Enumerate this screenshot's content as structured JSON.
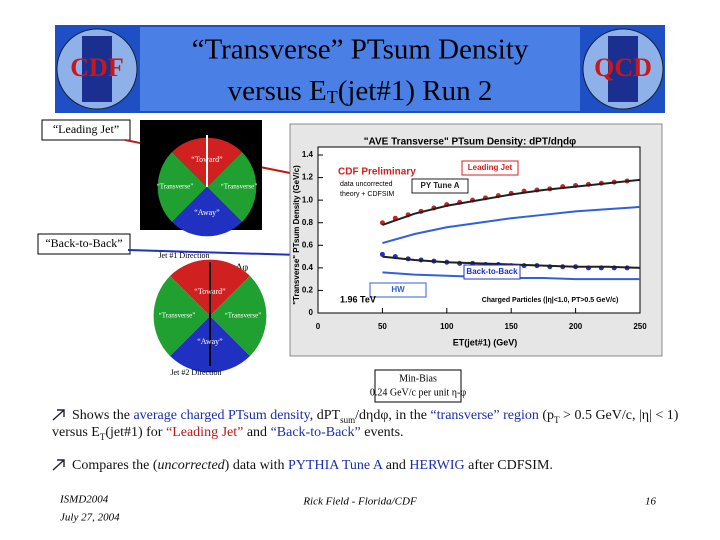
{
  "header": {
    "line1": "“Transverse” PTsum Density",
    "line2_a": "versus E",
    "line2_sub": "T",
    "line2_b": "(jet#1) Run 2",
    "logo_left": "CDF",
    "logo_right": "QCD"
  },
  "side_labels": {
    "leading_jet": "“Leading Jet”",
    "back_to_back": "“Back-to-Back”"
  },
  "diagram1": {
    "toward": "“Toward”",
    "transverse_left": "“Transverse”",
    "transverse_right": "“Transverse”",
    "away": "“Away”"
  },
  "diagram2": {
    "jet1": "Jet #1 Direction",
    "dphi": "Δφ",
    "toward": "“Toward”",
    "transverse_left": "“Transverse”",
    "transverse_right": "“Transverse”",
    "away": "“Away”",
    "jet2": "Jet #2 Direction"
  },
  "chart_data": {
    "type": "line",
    "title": "\"AVE Transverse\" PTsum Density: dPT/dηdφ",
    "y_label": "\"Transverse\" PTsum Density (GeV/c)",
    "x_label": "ET(jet#1) (GeV)",
    "xlim": [
      0,
      250
    ],
    "xticks": [
      0,
      50,
      100,
      150,
      200,
      250
    ],
    "ylim": [
      0,
      1.4
    ],
    "yticks": [
      0,
      0.2,
      0.4,
      0.6,
      0.8,
      {
        "value": 1,
        "label": "1.0"
      },
      1.2,
      1.4
    ],
    "annotations": {
      "preliminary": "CDF Preliminary",
      "uncorrected": "data uncorrected",
      "theory": "theory + CDFSIM",
      "energy": "1.96 TeV",
      "cuts": "Charged Particles (|η|<1.0, PT>0.5 GeV/c)"
    },
    "series": [
      {
        "name": "Leading Jet",
        "color": "#d42020",
        "style": "points",
        "x": [
          50,
          60,
          70,
          80,
          90,
          100,
          110,
          120,
          130,
          140,
          150,
          160,
          170,
          180,
          190,
          200,
          210,
          220,
          230,
          240
        ],
        "values": [
          0.8,
          0.84,
          0.87,
          0.9,
          0.93,
          0.96,
          0.98,
          1.0,
          1.02,
          1.04,
          1.06,
          1.08,
          1.09,
          1.1,
          1.12,
          1.13,
          1.14,
          1.15,
          1.16,
          1.17
        ]
      },
      {
        "name": "Back-to-Back",
        "color": "#2030c0",
        "style": "points",
        "x": [
          50,
          60,
          70,
          80,
          90,
          100,
          110,
          120,
          130,
          140,
          150,
          160,
          170,
          180,
          190,
          200,
          210,
          220,
          230,
          240
        ],
        "values": [
          0.52,
          0.5,
          0.48,
          0.47,
          0.46,
          0.45,
          0.44,
          0.44,
          0.43,
          0.43,
          0.42,
          0.42,
          0.42,
          0.41,
          0.41,
          0.41,
          0.4,
          0.4,
          0.4,
          0.4
        ]
      },
      {
        "name": "PY Tune A",
        "color": "#202020",
        "style": "line",
        "x": [
          50,
          75,
          100,
          125,
          150,
          175,
          200,
          225,
          250
        ],
        "values": [
          0.78,
          0.88,
          0.95,
          1.0,
          1.05,
          1.09,
          1.12,
          1.15,
          1.18
        ]
      },
      {
        "color": "#202020",
        "style": "line",
        "x": [
          50,
          75,
          100,
          125,
          150,
          175,
          200,
          225,
          250
        ],
        "values": [
          0.5,
          0.47,
          0.45,
          0.44,
          0.43,
          0.42,
          0.41,
          0.41,
          0.4
        ]
      },
      {
        "color": "#3060e0",
        "style": "line",
        "x": [
          50,
          75,
          100,
          125,
          150,
          175,
          200,
          225,
          250
        ],
        "values": [
          0.62,
          0.7,
          0.76,
          0.8,
          0.84,
          0.87,
          0.9,
          0.92,
          0.94
        ]
      },
      {
        "name": "HW",
        "color": "#3060e0",
        "style": "line",
        "x": [
          50,
          75,
          100,
          125,
          150,
          175,
          200,
          225,
          250
        ],
        "values": [
          0.36,
          0.34,
          0.33,
          0.32,
          0.31,
          0.31,
          0.3,
          0.3,
          0.3
        ]
      }
    ]
  },
  "min_bias": {
    "line1": "Min-Bias",
    "line2": "0.24 GeV/c per unit η-φ"
  },
  "bullets": [
    [
      "Shows the ",
      "average charged PTsum density",
      ", dPT",
      "sum",
      "/dηdφ, in the ",
      "“transverse” region",
      " (p",
      "T",
      " > 0.5 GeV/c, |η| < 1) versus E",
      "T",
      "(jet#1) for ",
      "“Leading Jet”",
      " and ",
      "“Back-to-Back”",
      " events."
    ],
    [
      "Compares the (",
      "uncorrected",
      ") data with ",
      "PYTHIA Tune A",
      " and ",
      "HERWIG",
      " after CDFSIM."
    ]
  ],
  "footer": {
    "event": "ISMD2004",
    "date": "July 27, 2004",
    "author": "Rick Field - Florida/CDF",
    "page": "16"
  }
}
